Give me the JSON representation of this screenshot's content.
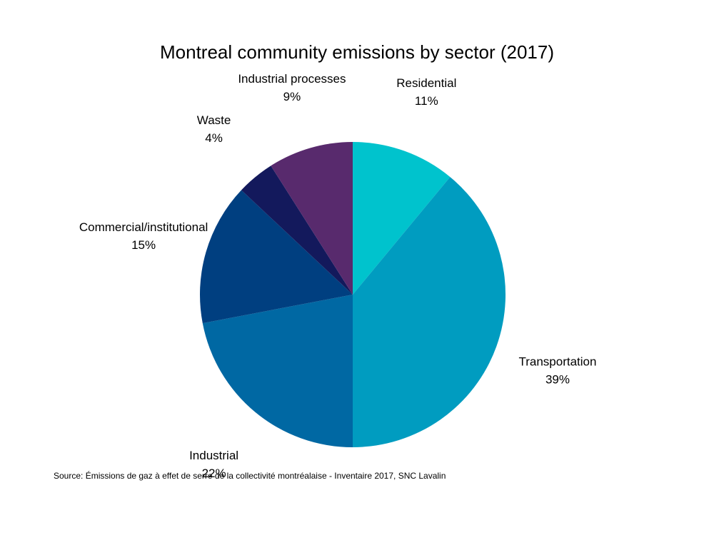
{
  "chart_data": {
    "type": "pie",
    "title": "Montreal community emissions by sector (2017)",
    "source": "Source: Émissions de gaz à effet de serre de la collectivité montréalaise - Inventaire 2017, SNC Lavalin",
    "slices": [
      {
        "label": "Residential",
        "value": 11,
        "value_label": "11%",
        "color": "#00c3cd"
      },
      {
        "label": "Transportation",
        "value": 39,
        "value_label": "39%",
        "color": "#009cc0"
      },
      {
        "label": "Industrial",
        "value": 22,
        "value_label": "22%",
        "color": "#0068a3"
      },
      {
        "label": "Commercial/institutional",
        "value": 15,
        "value_label": "15%",
        "color": "#003f80"
      },
      {
        "label": "Waste",
        "value": 4,
        "value_label": "4%",
        "color": "#13195c"
      },
      {
        "label": "Industrial processes",
        "value": 9,
        "value_label": "9%",
        "color": "#582a6d"
      }
    ],
    "start_angle": "top",
    "direction": "clockwise",
    "legend": "none"
  }
}
